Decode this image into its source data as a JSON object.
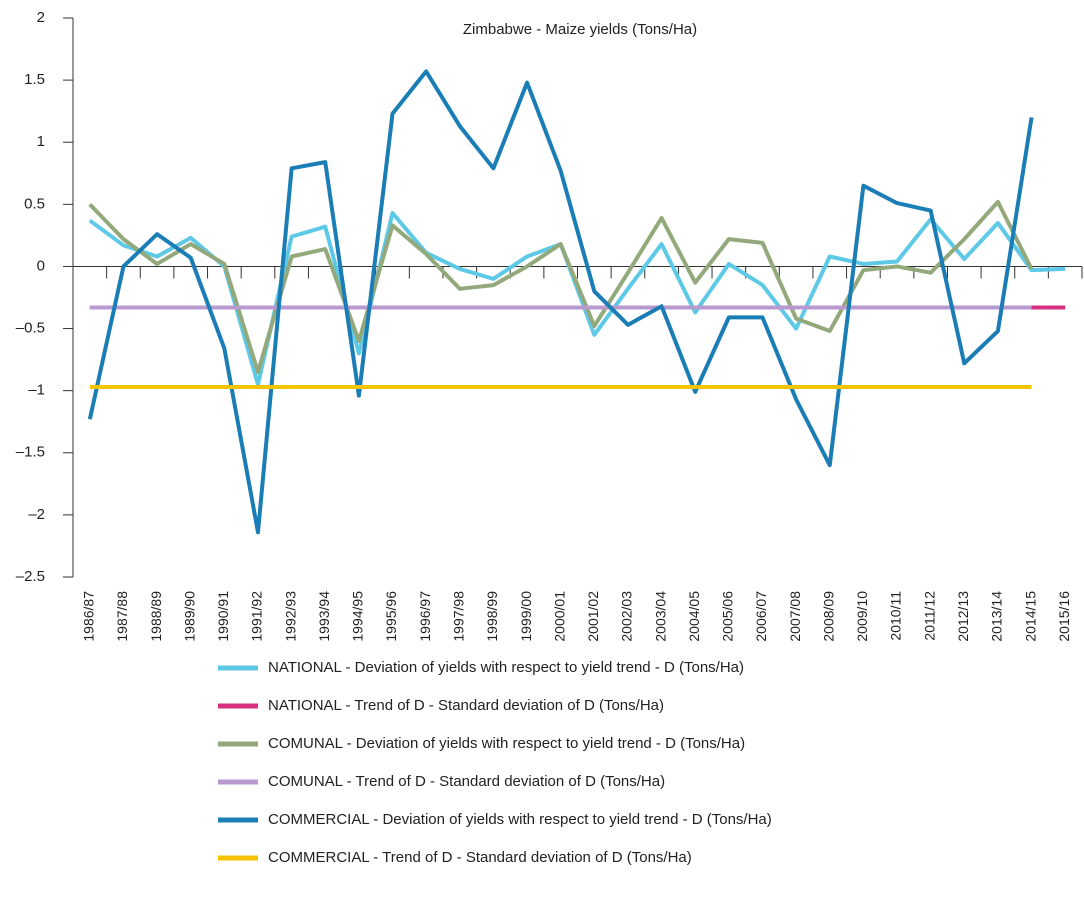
{
  "chart_data": {
    "type": "line",
    "title": "Zimbabwe - Maize yields (Tons/Ha)",
    "categories": [
      "1986/87",
      "1987/88",
      "1988/89",
      "1989/90",
      "1990/91",
      "1991/92",
      "1992/93",
      "1993/94",
      "1994/95",
      "1995/96",
      "1996/97",
      "1997/98",
      "1998/99",
      "1999/00",
      "2000/01",
      "2001/02",
      "2002/03",
      "2003/04",
      "2004/05",
      "2005/06",
      "2006/07",
      "2007/08",
      "2008/09",
      "2009/10",
      "2010/11",
      "2011/12",
      "2012/13",
      "2013/14",
      "2014/15",
      "2015/16"
    ],
    "ylim": [
      -2.5,
      2
    ],
    "yticks": [
      {
        "value": -2.5,
        "label": "–2.5"
      },
      {
        "value": -2,
        "label": "–2"
      },
      {
        "value": -1.5,
        "label": "–1.5"
      },
      {
        "value": -1,
        "label": "–1"
      },
      {
        "value": -0.5,
        "label": "–0.5"
      },
      0,
      0.5,
      1,
      1.5,
      2
    ],
    "series": [
      {
        "name": "NATIONAL - Deviation of yields with respect to yield trend - D (Tons/Ha)",
        "color": "#5ec9e6",
        "values": [
          0.37,
          0.17,
          0.08,
          0.23,
          0.0,
          -0.95,
          0.24,
          0.32,
          -0.7,
          0.43,
          0.11,
          -0.02,
          -0.1,
          0.08,
          0.18,
          -0.55,
          -0.18,
          0.18,
          -0.37,
          0.02,
          -0.15,
          -0.5,
          0.08,
          0.02,
          0.04,
          0.38,
          0.06,
          0.35,
          -0.03,
          -0.02
        ]
      },
      {
        "name": "NATIONAL - Trend of D - Standard deviation of D (Tons/Ha)",
        "color": "#d6307f",
        "values": [
          -0.33,
          -0.33,
          -0.33,
          -0.33,
          -0.33,
          -0.33,
          -0.33,
          -0.33,
          -0.33,
          -0.33,
          -0.33,
          -0.33,
          -0.33,
          -0.33,
          -0.33,
          -0.33,
          -0.33,
          -0.33,
          -0.33,
          -0.33,
          -0.33,
          -0.33,
          -0.33,
          -0.33,
          -0.33,
          -0.33,
          -0.33,
          -0.33,
          -0.33,
          -0.33
        ]
      },
      {
        "name": "COMUNAL - Deviation of yields with respect to yield trend - D (Tons/Ha)",
        "color": "#93a97c",
        "values": [
          0.5,
          0.22,
          0.02,
          0.18,
          0.02,
          -0.85,
          0.08,
          0.14,
          -0.6,
          0.33,
          0.1,
          -0.18,
          -0.15,
          0.0,
          0.18,
          -0.48,
          -0.05,
          0.39,
          -0.13,
          0.22,
          0.19,
          -0.42,
          -0.52,
          -0.03,
          0.0,
          -0.05,
          0.22,
          0.52,
          -0.02,
          null
        ]
      },
      {
        "name": "COMUNAL - Trend of D - Standard deviation of D (Tons/Ha)",
        "color": "#b99ad0",
        "values": [
          -0.33,
          -0.33,
          -0.33,
          -0.33,
          -0.33,
          -0.33,
          -0.33,
          -0.33,
          -0.33,
          -0.33,
          -0.33,
          -0.33,
          -0.33,
          -0.33,
          -0.33,
          -0.33,
          -0.33,
          -0.33,
          -0.33,
          -0.33,
          -0.33,
          -0.33,
          -0.33,
          -0.33,
          -0.33,
          -0.33,
          -0.33,
          -0.33,
          -0.33,
          null
        ]
      },
      {
        "name": "COMMERCIAL - Deviation of yields with respect to yield trend - D (Tons/Ha)",
        "color": "#1a7db5",
        "values": [
          -1.23,
          0.0,
          0.26,
          0.07,
          -0.66,
          -2.14,
          0.79,
          0.84,
          -1.04,
          1.23,
          1.57,
          1.13,
          0.79,
          1.48,
          0.77,
          -0.2,
          -0.47,
          -0.32,
          -1.01,
          -0.41,
          -0.41,
          -1.07,
          -1.6,
          0.65,
          0.51,
          0.45,
          -0.78,
          -0.52,
          1.2,
          null
        ]
      },
      {
        "name": "COMMERCIAL - Trend of D - Standard deviation of D (Tons/Ha)",
        "color": "#f5c400",
        "values": [
          -0.97,
          -0.97,
          -0.97,
          -0.97,
          -0.97,
          -0.97,
          -0.97,
          -0.97,
          -0.97,
          -0.97,
          -0.97,
          -0.97,
          -0.97,
          -0.97,
          -0.97,
          -0.97,
          -0.97,
          -0.97,
          -0.97,
          -0.97,
          -0.97,
          -0.97,
          -0.97,
          -0.97,
          -0.97,
          -0.97,
          -0.97,
          -0.97,
          -0.97,
          null
        ]
      }
    ]
  }
}
